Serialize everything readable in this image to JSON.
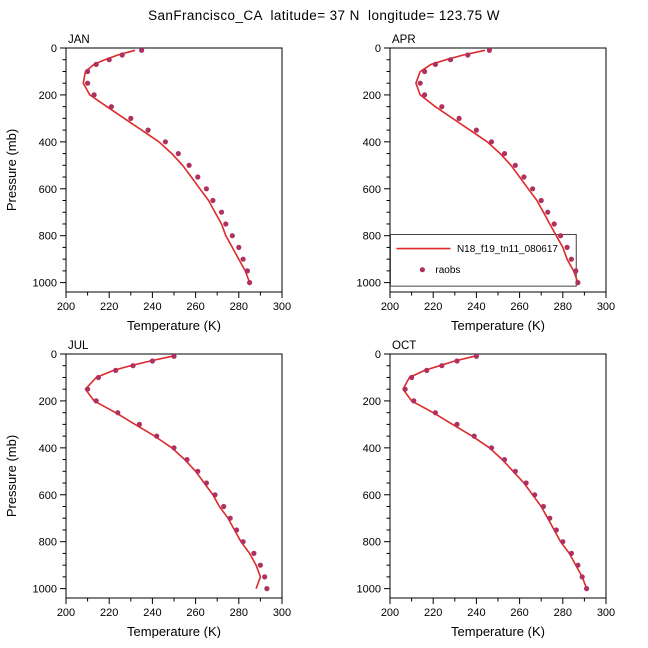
{
  "title": "SanFrancisco_CA  latitude= 37 N  longitude= 123.75 W",
  "chart_data": {
    "type": "line",
    "xlabel": "Temperature (K)",
    "ylabel": "Pressure (mb)",
    "x_range": [
      200,
      300
    ],
    "x_major_ticks": [
      200,
      220,
      240,
      260,
      280,
      300
    ],
    "x_minor_step": 10,
    "y_range": [
      0,
      1040
    ],
    "y_major_ticks": [
      0,
      200,
      400,
      600,
      800,
      1000
    ],
    "y_minor_step": 50,
    "grid": "off",
    "colors": {
      "model": "#dd2a2a",
      "raobs": "#b03060"
    },
    "legend": {
      "line_label": "N18_f19_tn11_080617",
      "dot_label": "raobs",
      "position": "lower-left of APR panel"
    },
    "levels_mb": [
      10,
      30,
      50,
      70,
      100,
      150,
      200,
      250,
      300,
      350,
      400,
      450,
      500,
      550,
      600,
      650,
      700,
      750,
      800,
      850,
      900,
      950,
      1000
    ],
    "panels": [
      {
        "month": "JAN",
        "show_ylabel": true,
        "show_legend": false,
        "model_temp_k": [
          232,
          224,
          218,
          213,
          209,
          208,
          211,
          219,
          227,
          235,
          243,
          249,
          254,
          258,
          262,
          266,
          269,
          272,
          274,
          277,
          280,
          283,
          285
        ],
        "raobs_temp_k": [
          235,
          226,
          220,
          214,
          210,
          210,
          213,
          221,
          230,
          238,
          246,
          252,
          257,
          261,
          265,
          268,
          272,
          274,
          277,
          280,
          282,
          284,
          285
        ]
      },
      {
        "month": "APR",
        "show_ylabel": false,
        "show_legend": true,
        "model_temp_k": [
          244,
          234,
          226,
          219,
          214,
          212,
          214,
          221,
          229,
          237,
          245,
          251,
          256,
          260,
          264,
          268,
          271,
          274,
          277,
          280,
          282,
          285,
          287
        ],
        "raobs_temp_k": [
          246,
          236,
          228,
          221,
          216,
          214,
          216,
          224,
          232,
          240,
          247,
          253,
          258,
          262,
          266,
          270,
          273,
          276,
          279,
          282,
          284,
          286,
          287
        ]
      },
      {
        "month": "JUL",
        "show_ylabel": true,
        "show_legend": false,
        "model_temp_k": [
          249,
          239,
          230,
          222,
          214,
          209,
          213,
          223,
          232,
          241,
          249,
          255,
          260,
          264,
          268,
          271,
          275,
          278,
          281,
          285,
          288,
          290,
          288
        ],
        "raobs_temp_k": [
          250,
          240,
          231,
          223,
          215,
          210,
          214,
          224,
          234,
          242,
          250,
          256,
          261,
          265,
          269,
          273,
          276,
          279,
          282,
          287,
          290,
          292,
          293
        ]
      },
      {
        "month": "OCT",
        "show_ylabel": false,
        "show_legend": false,
        "model_temp_k": [
          239,
          230,
          223,
          216,
          209,
          206,
          210,
          220,
          229,
          238,
          246,
          252,
          257,
          262,
          266,
          270,
          273,
          276,
          279,
          283,
          286,
          289,
          291
        ],
        "raobs_temp_k": [
          240,
          231,
          224,
          217,
          210,
          207,
          211,
          221,
          231,
          239,
          247,
          253,
          258,
          263,
          267,
          271,
          274,
          277,
          280,
          284,
          287,
          289,
          291
        ]
      }
    ]
  }
}
